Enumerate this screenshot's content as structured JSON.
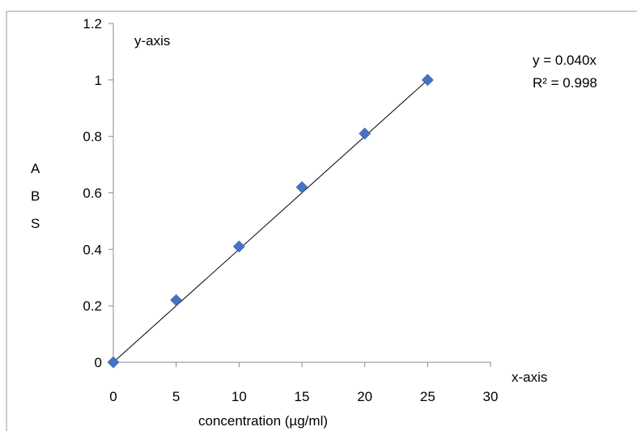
{
  "chart_data": {
    "type": "scatter",
    "x": [
      0,
      5,
      10,
      15,
      20,
      25
    ],
    "y": [
      0,
      0.22,
      0.41,
      0.62,
      0.81,
      1.0
    ],
    "xlim": [
      0,
      30
    ],
    "ylim": [
      0,
      1.2
    ],
    "x_ticks": [
      "0",
      "5",
      "10",
      "15",
      "20",
      "25",
      "30"
    ],
    "y_ticks": [
      "0",
      "0.2",
      "0.4",
      "0.6",
      "0.8",
      "1",
      "1.2"
    ],
    "x_tick_values": [
      0,
      5,
      10,
      15,
      20,
      25,
      30
    ],
    "y_tick_values": [
      0,
      0.2,
      0.4,
      0.6,
      0.8,
      1.0,
      1.2
    ],
    "xlabel": "concentration (µg/ml)",
    "ylabel_letters": [
      "A",
      "B",
      "S"
    ],
    "annotations": {
      "y_axis_note": "y-axis",
      "x_axis_note": "x-axis",
      "equation": "y = 0.040x",
      "r_squared": "R² = 0.998"
    },
    "trendline": {
      "slope": 0.04,
      "intercept": 0
    },
    "grid": false,
    "legend": "none",
    "marker": "diamond",
    "colors": {
      "marker": "#4472c4",
      "trendline": "#000000",
      "axis": "#888888"
    }
  }
}
